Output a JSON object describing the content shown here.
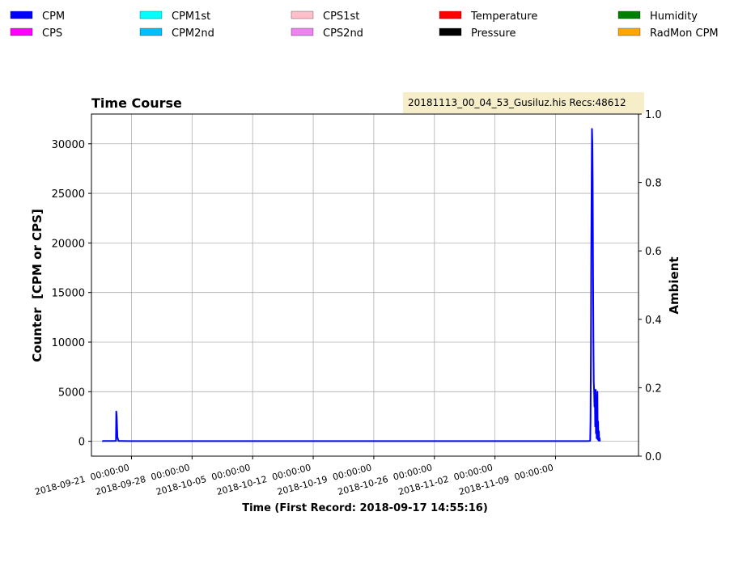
{
  "chart_data": {
    "type": "line",
    "title": "Time Course",
    "file_label": "20181113_00_04_53_Gusiluz.his  Recs:48612",
    "xlabel": "Time (First Record: 2018-09-17 14:55:16)",
    "ylabel": "Counter  [CPM or CPS]",
    "y2label": "Ambient",
    "grid": true,
    "legend_placement": "top",
    "colors": {
      "CPM": "#0000ff",
      "CPS": "#ff00ff",
      "CPM1st": "#00ffff",
      "CPM2nd": "#00bfff",
      "CPS1st": "#ffc0cb",
      "CPS2nd": "#ee82ee",
      "Temperature": "#ff0000",
      "Pressure": "#000000",
      "Humidity": "#008000",
      "RadMon CPM": "#ffa500"
    },
    "legend": [
      [
        "CPM",
        "CPS"
      ],
      [
        "CPM1st",
        "CPM2nd"
      ],
      [
        "CPS1st",
        "CPS2nd"
      ],
      [
        "Temperature",
        "Pressure"
      ],
      [
        "Humidity",
        "RadMon CPM"
      ]
    ],
    "xlim": [
      "2018-09-16 09:00",
      "2018-11-18 14:00"
    ],
    "ylim": [
      -1500,
      33000
    ],
    "y2lim": [
      0,
      1
    ],
    "x_tick_labels": [
      "2018-09-21  00:00:00",
      "2018-09-28  00:00:00",
      "2018-10-05  00:00:00",
      "2018-10-12  00:00:00",
      "2018-10-19  00:00:00",
      "2018-10-26  00:00:00",
      "2018-11-02  00:00:00",
      "2018-11-09  00:00:00"
    ],
    "x_ticks": [
      "2018-09-21",
      "2018-09-28",
      "2018-10-05",
      "2018-10-12",
      "2018-10-19",
      "2018-10-26",
      "2018-11-02",
      "2018-11-09"
    ],
    "y_ticks": [
      0,
      5000,
      10000,
      15000,
      20000,
      25000,
      30000
    ],
    "y2_ticks": [
      "0.0",
      "0.2",
      "0.4",
      "0.6",
      "0.8",
      "1.0"
    ],
    "series": [
      {
        "name": "CPM",
        "x": [
          "2018-09-17 14:55",
          "2018-09-17 16:00",
          "2018-09-17 18:00",
          "2018-09-18 00:00",
          "2018-09-18 12:00",
          "2018-09-18 20:00",
          "2018-09-19 05:00",
          "2018-09-19 06:00",
          "2018-09-19 07:00",
          "2018-09-19 09:00",
          "2018-09-19 12:00",
          "2018-09-19 20:00",
          "2018-09-20 18:00",
          "2018-09-22 00:00",
          "2018-10-01 00:00",
          "2018-10-10 00:00",
          "2018-10-19 00:00",
          "2018-10-26 00:00",
          "2018-11-05 00:00",
          "2018-11-09 00:00",
          "2018-11-12 12:00",
          "2018-11-12 20:00",
          "2018-11-12 22:00",
          "2018-11-13 00:00",
          "2018-11-13 01:00",
          "2018-11-13 02:00",
          "2018-11-13 03:00",
          "2018-11-13 04:00",
          "2018-11-13 05:00",
          "2018-11-13 06:00",
          "2018-11-13 07:00",
          "2018-11-13 08:00",
          "2018-11-13 09:00",
          "2018-11-13 10:00",
          "2018-11-13 11:00",
          "2018-11-13 12:00",
          "2018-11-13 13:00",
          "2018-11-13 14:00",
          "2018-11-13 15:00",
          "2018-11-13 16:00",
          "2018-11-13 17:00",
          "2018-11-13 18:00",
          "2018-11-13 19:00",
          "2018-11-13 20:00",
          "2018-11-13 21:00",
          "2018-11-13 22:00",
          "2018-11-13 23:00",
          "2018-11-14 00:00",
          "2018-11-14 01:00",
          "2018-11-14 02:00",
          "2018-11-14 03:00",
          "2018-11-14 04:00"
        ],
        "y": [
          30,
          20,
          35,
          25,
          28,
          30,
          40,
          3000,
          2500,
          400,
          30,
          25,
          20,
          20,
          20,
          20,
          20,
          20,
          20,
          20,
          20,
          25,
          30,
          60,
          2000,
          9000,
          18700,
          26200,
          31500,
          30000,
          26000,
          16000,
          10000,
          6000,
          5000,
          3500,
          4800,
          1500,
          5200,
          800,
          4500,
          300,
          3500,
          5000,
          200,
          2000,
          100,
          1000,
          50,
          300,
          40,
          30
        ]
      }
    ]
  }
}
